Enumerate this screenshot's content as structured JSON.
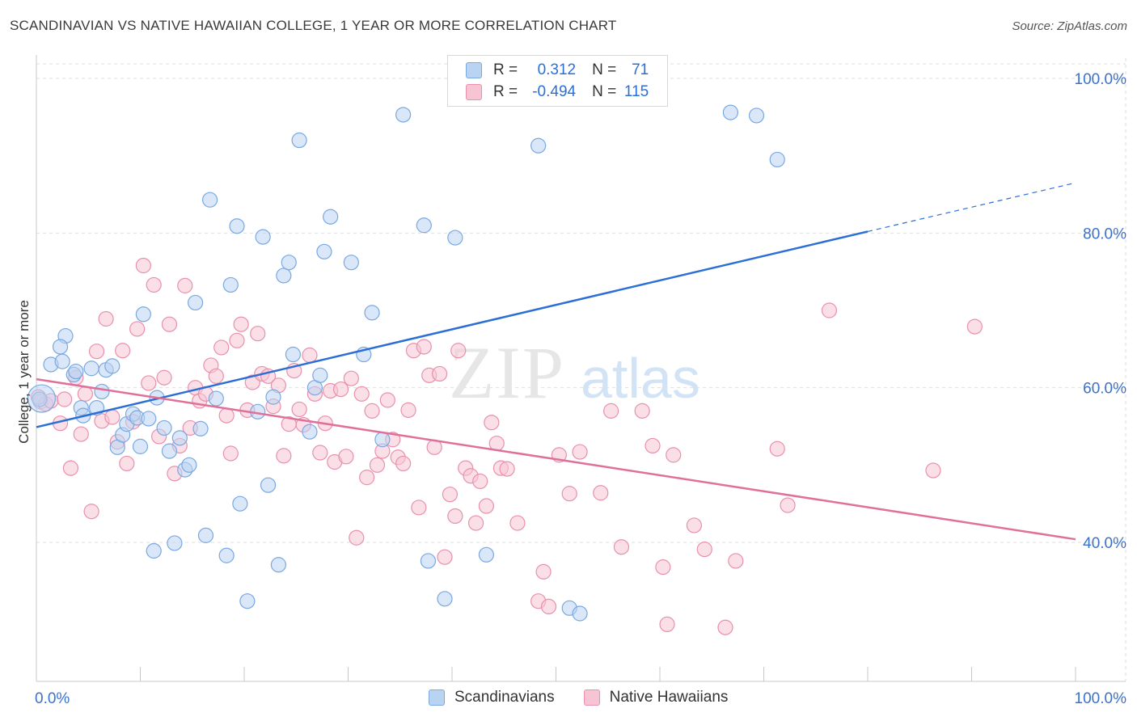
{
  "title": "SCANDINAVIAN VS NATIVE HAWAIIAN COLLEGE, 1 YEAR OR MORE CORRELATION CHART",
  "source": "Source: ZipAtlas.com",
  "legend": {
    "r_label": "R =",
    "n_label": "N =",
    "series1": {
      "r": "0.312",
      "n": "71"
    },
    "series2": {
      "r": "-0.494",
      "n": "115"
    }
  },
  "colors": {
    "blue_fill": "#b9d3f3",
    "blue_stroke": "#7aa8e0",
    "blue_line": "#2b6fd6",
    "pink_fill": "#f7c4d4",
    "pink_stroke": "#e890ae",
    "pink_line": "#e0709a",
    "axis_text": "#3a72cc"
  },
  "chart_data": {
    "type": "scatter",
    "xlabel": "",
    "ylabel": "College, 1 year or more",
    "xlim": [
      0,
      100
    ],
    "ylim": [
      20,
      103
    ],
    "x_tick_labels": [
      "0.0%",
      "100.0%"
    ],
    "y_ticks": [
      40,
      60,
      80,
      100
    ],
    "y_tick_labels": [
      "40.0%",
      "60.0%",
      "80.0%",
      "100.0%"
    ],
    "grid": true,
    "legend_position": "top-center and bottom",
    "series": [
      {
        "name": "Scandinavians",
        "r": 0.312,
        "n": 71,
        "trend": {
          "x0": 0,
          "y0": 54.9,
          "x1": 80,
          "y1": 80.2,
          "dash_to_x": 100,
          "dash_to_y": 86.5
        },
        "points": [
          [
            0.3,
            58.5
          ],
          [
            1.4,
            63
          ],
          [
            2.5,
            63.4
          ],
          [
            2.8,
            66.7
          ],
          [
            2.3,
            65.3
          ],
          [
            3.6,
            61.7
          ],
          [
            3.8,
            62.1
          ],
          [
            4.3,
            57.4
          ],
          [
            4.5,
            56.4
          ],
          [
            5.3,
            62.5
          ],
          [
            5.8,
            57.4
          ],
          [
            6.3,
            59.5
          ],
          [
            6.7,
            62.3
          ],
          [
            7.3,
            62.8
          ],
          [
            7.8,
            52.3
          ],
          [
            8.3,
            53.9
          ],
          [
            8.7,
            55.3
          ],
          [
            9.3,
            56.6
          ],
          [
            9.7,
            56.1
          ],
          [
            10,
            52.4
          ],
          [
            10.3,
            69.5
          ],
          [
            10.8,
            56
          ],
          [
            11.3,
            38.9
          ],
          [
            11.6,
            58.7
          ],
          [
            12.3,
            54.8
          ],
          [
            12.8,
            51.8
          ],
          [
            13.3,
            39.9
          ],
          [
            13.8,
            53.5
          ],
          [
            14.3,
            49.4
          ],
          [
            14.7,
            50
          ],
          [
            15.3,
            71
          ],
          [
            15.8,
            54.7
          ],
          [
            16.3,
            40.9
          ],
          [
            16.7,
            84.3
          ],
          [
            17.3,
            58.6
          ],
          [
            18.3,
            38.3
          ],
          [
            18.7,
            73.3
          ],
          [
            19.3,
            80.9
          ],
          [
            19.6,
            45
          ],
          [
            20.3,
            32.4
          ],
          [
            21.3,
            56.9
          ],
          [
            21.8,
            79.5
          ],
          [
            22.3,
            47.4
          ],
          [
            22.8,
            58.8
          ],
          [
            23.3,
            37.1
          ],
          [
            23.8,
            74.5
          ],
          [
            24.3,
            76.2
          ],
          [
            24.7,
            64.3
          ],
          [
            25.3,
            92
          ],
          [
            26.3,
            54.3
          ],
          [
            26.8,
            60
          ],
          [
            27.3,
            61.6
          ],
          [
            27.7,
            77.6
          ],
          [
            28.3,
            82.1
          ],
          [
            30.3,
            76.2
          ],
          [
            31.5,
            64.3
          ],
          [
            32.3,
            69.7
          ],
          [
            33.3,
            53.3
          ],
          [
            35.3,
            95.3
          ],
          [
            37.3,
            81
          ],
          [
            37.7,
            37.6
          ],
          [
            39.3,
            32.7
          ],
          [
            40.3,
            79.4
          ],
          [
            43.3,
            38.4
          ],
          [
            47.3,
            100
          ],
          [
            48.3,
            91.3
          ],
          [
            51.3,
            31.5
          ],
          [
            52.3,
            30.8
          ],
          [
            66.8,
            95.6
          ],
          [
            69.3,
            95.2
          ],
          [
            71.3,
            89.5
          ]
        ]
      },
      {
        "name": "Native Hawaiians",
        "r": -0.494,
        "n": 115,
        "trend": {
          "x0": 0,
          "y0": 61.1,
          "x1": 100,
          "y1": 40.4
        },
        "points": [
          [
            0.4,
            58.2
          ],
          [
            0.9,
            57.9
          ],
          [
            1.4,
            58.3
          ],
          [
            2.3,
            55.4
          ],
          [
            2.7,
            58.5
          ],
          [
            3.3,
            49.6
          ],
          [
            3.8,
            61.3
          ],
          [
            4.3,
            54
          ],
          [
            4.7,
            59.2
          ],
          [
            5.3,
            44
          ],
          [
            5.8,
            64.7
          ],
          [
            6.3,
            55.7
          ],
          [
            6.7,
            68.9
          ],
          [
            7.3,
            56.2
          ],
          [
            7.8,
            53
          ],
          [
            8.3,
            64.8
          ],
          [
            8.7,
            50.2
          ],
          [
            9.3,
            55.6
          ],
          [
            9.7,
            67.6
          ],
          [
            10.3,
            75.8
          ],
          [
            10.8,
            60.6
          ],
          [
            11.3,
            73.3
          ],
          [
            11.8,
            53.7
          ],
          [
            12.3,
            61.3
          ],
          [
            12.8,
            68.2
          ],
          [
            13.3,
            48.9
          ],
          [
            13.8,
            52.5
          ],
          [
            14.3,
            73.2
          ],
          [
            14.8,
            54.8
          ],
          [
            15.3,
            60
          ],
          [
            15.7,
            58.3
          ],
          [
            16.3,
            59.2
          ],
          [
            16.8,
            62.9
          ],
          [
            17.3,
            61.5
          ],
          [
            17.8,
            65.2
          ],
          [
            18.3,
            56.4
          ],
          [
            18.7,
            51.5
          ],
          [
            19.3,
            66.1
          ],
          [
            19.7,
            68.2
          ],
          [
            20.3,
            57.1
          ],
          [
            20.8,
            60.7
          ],
          [
            21.3,
            67
          ],
          [
            21.7,
            61.8
          ],
          [
            22.3,
            61.5
          ],
          [
            22.8,
            57.6
          ],
          [
            23.3,
            60.3
          ],
          [
            23.8,
            51.2
          ],
          [
            24.3,
            55.3
          ],
          [
            24.8,
            62.2
          ],
          [
            25.3,
            57.2
          ],
          [
            25.7,
            55.2
          ],
          [
            26.3,
            64.2
          ],
          [
            26.8,
            59.2
          ],
          [
            27.3,
            51.6
          ],
          [
            27.8,
            55.4
          ],
          [
            28.3,
            59.6
          ],
          [
            28.7,
            50.4
          ],
          [
            29.3,
            59.8
          ],
          [
            29.8,
            51.1
          ],
          [
            30.3,
            61.2
          ],
          [
            30.8,
            40.6
          ],
          [
            31.3,
            59.2
          ],
          [
            31.8,
            48.4
          ],
          [
            32.3,
            57
          ],
          [
            32.8,
            50
          ],
          [
            33.3,
            51.8
          ],
          [
            33.8,
            58.4
          ],
          [
            34.3,
            53.3
          ],
          [
            34.8,
            51
          ],
          [
            35.3,
            50.2
          ],
          [
            35.8,
            57.1
          ],
          [
            36.3,
            64.8
          ],
          [
            36.8,
            44.5
          ],
          [
            37.3,
            65.3
          ],
          [
            37.8,
            61.6
          ],
          [
            38.3,
            52.3
          ],
          [
            38.8,
            61.8
          ],
          [
            39.3,
            38.1
          ],
          [
            39.8,
            46.2
          ],
          [
            40.3,
            43.4
          ],
          [
            40.6,
            64.8
          ],
          [
            41.3,
            49.6
          ],
          [
            41.8,
            48.6
          ],
          [
            42.3,
            42.5
          ],
          [
            42.7,
            47.9
          ],
          [
            43.3,
            44.7
          ],
          [
            43.8,
            55.5
          ],
          [
            44.3,
            52.8
          ],
          [
            44.7,
            49.6
          ],
          [
            45.3,
            49.5
          ],
          [
            46.3,
            42.5
          ],
          [
            48.3,
            32.4
          ],
          [
            48.8,
            36.2
          ],
          [
            49.3,
            31.7
          ],
          [
            50.3,
            51.3
          ],
          [
            51.3,
            46.3
          ],
          [
            52.3,
            51.7
          ],
          [
            54.3,
            46.4
          ],
          [
            55.3,
            57
          ],
          [
            56.3,
            39.4
          ],
          [
            58.3,
            57
          ],
          [
            59.3,
            52.5
          ],
          [
            60.3,
            36.8
          ],
          [
            60.7,
            29.4
          ],
          [
            61.3,
            51.3
          ],
          [
            63.3,
            42.2
          ],
          [
            64.3,
            39.1
          ],
          [
            66.3,
            29
          ],
          [
            67.3,
            37.6
          ],
          [
            71.3,
            52.1
          ],
          [
            72.3,
            44.8
          ],
          [
            76.3,
            70
          ],
          [
            86.3,
            49.3
          ],
          [
            90.3,
            67.9
          ],
          [
            0.2,
            58.8
          ]
        ]
      }
    ]
  }
}
